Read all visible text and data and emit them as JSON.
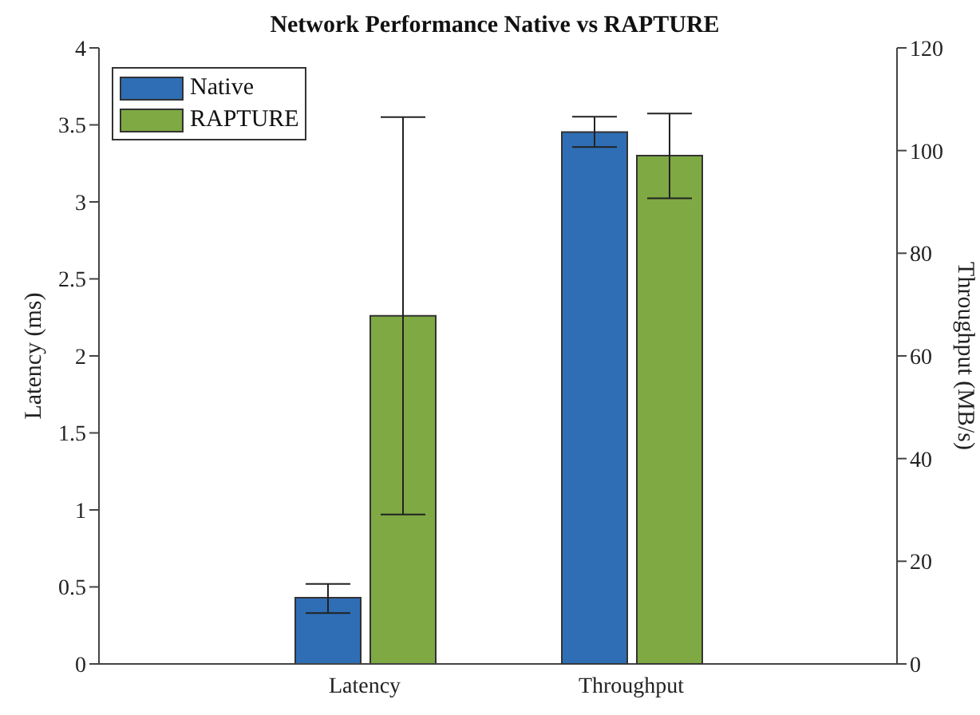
{
  "chart_data": {
    "type": "bar",
    "title": "Network Performance Native vs RAPTURE",
    "ylabel": "Latency (ms)",
    "y2label": "Throughput (MB/s)",
    "categories": [
      "Latency",
      "Throughput"
    ],
    "series": [
      {
        "name": "Native",
        "color": "#2f6eb5",
        "values": [
          0.43,
          null
        ],
        "errors": [
          [
            0.33,
            0.52
          ],
          null
        ]
      },
      {
        "name": "RAPTURE",
        "color": "#7ea943",
        "values": [
          2.26,
          null
        ],
        "errors": [
          [
            0.97,
            3.55
          ],
          null
        ]
      },
      {
        "color": "#2f6eb5",
        "axis": "y2",
        "values": [
          null,
          103.6
        ],
        "errors": [
          null,
          [
            100.7,
            106.6
          ]
        ]
      },
      {
        "color": "#7ea943",
        "axis": "y2",
        "values": [
          null,
          99.0
        ],
        "errors": [
          null,
          [
            90.7,
            107.2
          ]
        ]
      }
    ],
    "ylim": [
      0,
      4
    ],
    "yticks": [
      0,
      0.5,
      1,
      1.5,
      2,
      2.5,
      3,
      3.5,
      4
    ],
    "y2lim": [
      0,
      120
    ],
    "y2ticks": [
      0,
      20,
      40,
      60,
      80,
      100,
      120
    ],
    "legend": "top left"
  }
}
